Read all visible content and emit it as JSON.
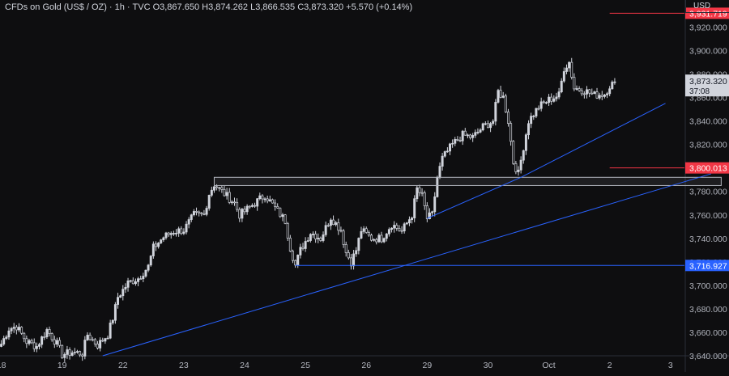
{
  "header": {
    "symbol": "CFDs on Gold (US$ / OZ)",
    "interval": "1h",
    "source": "TVC",
    "open": "O3,867.650",
    "high": "H3,874.262",
    "low": "L3,866.535",
    "close": "C3,873.320",
    "change": "+5.570 (+0.14%)"
  },
  "currency": "USD",
  "colors": {
    "background": "#0e0e10",
    "candle": "#d1d4dc",
    "resistance": "#f23645",
    "support_blue": "#2962ff",
    "trendline": "#2962ff",
    "zone_border": "#b2b5be"
  },
  "chart_data": {
    "type": "candlestick",
    "interval": "1h",
    "ylim": [
      3640,
      3932
    ],
    "y_ticks": [
      "3,640.000",
      "3,660.000",
      "3,680.000",
      "3,700.000",
      "3,720.000",
      "3,740.000",
      "3,760.000",
      "3,780.000",
      "3,800.000",
      "3,820.000",
      "3,840.000",
      "3,860.000",
      "3,880.000",
      "3,900.000",
      "3,920.000"
    ],
    "x_ticks": [
      "18",
      "19",
      "22",
      "23",
      "24",
      "25",
      "26",
      "29",
      "30",
      "Oct",
      "2",
      "3"
    ],
    "x_tick_index": [
      0,
      24,
      48,
      72,
      96,
      120,
      144,
      168,
      192,
      216,
      240,
      264
    ],
    "total_slots": 270,
    "price_path": [
      [
        0,
        3650
      ],
      [
        3,
        3663
      ],
      [
        6,
        3665
      ],
      [
        10,
        3652
      ],
      [
        14,
        3648
      ],
      [
        18,
        3662
      ],
      [
        22,
        3650
      ],
      [
        24,
        3641
      ],
      [
        28,
        3643
      ],
      [
        32,
        3642
      ],
      [
        34,
        3658
      ],
      [
        38,
        3649
      ],
      [
        42,
        3658
      ],
      [
        44,
        3672
      ],
      [
        46,
        3690
      ],
      [
        50,
        3702
      ],
      [
        54,
        3706
      ],
      [
        58,
        3716
      ],
      [
        60,
        3732
      ],
      [
        64,
        3741
      ],
      [
        68,
        3746
      ],
      [
        72,
        3747
      ],
      [
        76,
        3760
      ],
      [
        80,
        3760
      ],
      [
        82,
        3778
      ],
      [
        84,
        3786
      ],
      [
        88,
        3778
      ],
      [
        92,
        3770
      ],
      [
        94,
        3760
      ],
      [
        96,
        3763
      ],
      [
        100,
        3770
      ],
      [
        104,
        3777
      ],
      [
        108,
        3766
      ],
      [
        112,
        3755
      ],
      [
        114,
        3732
      ],
      [
        116,
        3717
      ],
      [
        118,
        3730
      ],
      [
        122,
        3745
      ],
      [
        126,
        3740
      ],
      [
        130,
        3758
      ],
      [
        134,
        3747
      ],
      [
        136,
        3728
      ],
      [
        138,
        3720
      ],
      [
        140,
        3730
      ],
      [
        142,
        3747
      ],
      [
        146,
        3740
      ],
      [
        150,
        3740
      ],
      [
        154,
        3752
      ],
      [
        158,
        3746
      ],
      [
        162,
        3760
      ],
      [
        164,
        3782
      ],
      [
        166,
        3776
      ],
      [
        168,
        3757
      ],
      [
        170,
        3760
      ],
      [
        172,
        3792
      ],
      [
        174,
        3808
      ],
      [
        178,
        3820
      ],
      [
        182,
        3828
      ],
      [
        186,
        3826
      ],
      [
        190,
        3835
      ],
      [
        194,
        3840
      ],
      [
        196,
        3865
      ],
      [
        198,
        3860
      ],
      [
        200,
        3840
      ],
      [
        202,
        3805
      ],
      [
        204,
        3795
      ],
      [
        206,
        3818
      ],
      [
        208,
        3840
      ],
      [
        212,
        3852
      ],
      [
        216,
        3858
      ],
      [
        220,
        3862
      ],
      [
        222,
        3885
      ],
      [
        224,
        3890
      ],
      [
        226,
        3868
      ],
      [
        230,
        3866
      ],
      [
        234,
        3862
      ],
      [
        238,
        3863
      ],
      [
        240,
        3870
      ],
      [
        242,
        3873
      ]
    ],
    "horizontal_levels": [
      {
        "value": 3931.719,
        "label": "3,931.719",
        "color": "#f23645",
        "start_index": 240
      },
      {
        "value": 3800.013,
        "label": "3,800.013",
        "color": "#f23645",
        "start_index": 240
      },
      {
        "value": 3716.927,
        "label": "3,716.927",
        "color": "#2962ff",
        "start_index": 116
      }
    ],
    "zone": {
      "from_index": 84,
      "to_index": 284,
      "low": 3785,
      "high": 3792
    },
    "trendlines": [
      {
        "from": [
          40,
          3640
        ],
        "to": [
          280,
          3795
        ]
      },
      {
        "from": [
          168,
          3757
        ],
        "to": [
          205,
          3792
        ]
      },
      {
        "from": [
          205,
          3792
        ],
        "to": [
          262,
          3855
        ]
      }
    ],
    "last_price": {
      "value": 3873.32,
      "label": "3,873.320",
      "countdown": "37:08"
    }
  }
}
